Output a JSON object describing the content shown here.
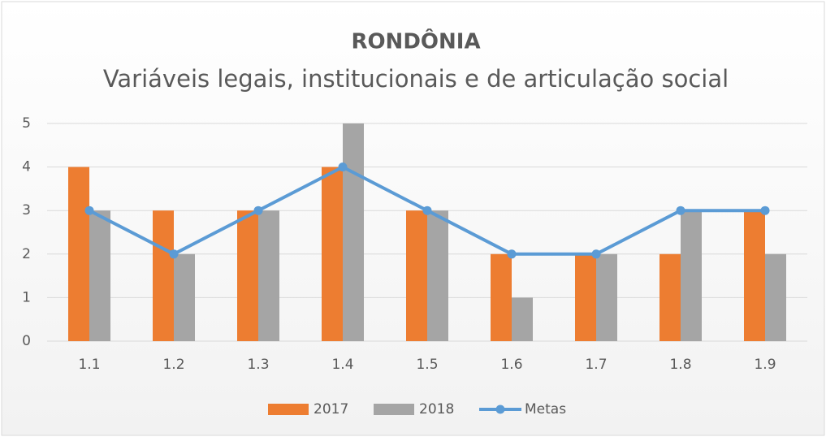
{
  "chart_data": {
    "type": "bar",
    "title": "RONDÔNIA",
    "subtitle": "Variáveis legais, institucionais e de articulação social",
    "categories": [
      "1.1",
      "1.2",
      "1.3",
      "1.4",
      "1.5",
      "1.6",
      "1.7",
      "1.8",
      "1.9"
    ],
    "series": [
      {
        "name": "2017",
        "color": "#ed7d31",
        "type": "bar",
        "values": [
          4,
          3,
          3,
          4,
          3,
          2,
          2,
          2,
          3
        ]
      },
      {
        "name": "2018",
        "color": "#a5a5a5",
        "type": "bar",
        "values": [
          3,
          2,
          3,
          5,
          3,
          1,
          2,
          3,
          2
        ]
      },
      {
        "name": "Metas",
        "color": "#5b9bd5",
        "type": "line",
        "values": [
          3,
          2,
          3,
          4,
          3,
          2,
          2,
          3,
          3
        ]
      }
    ],
    "ylim": [
      0,
      5
    ],
    "yticks": [
      0,
      1,
      2,
      3,
      4,
      5
    ],
    "grid": true,
    "legend": "bottom"
  }
}
